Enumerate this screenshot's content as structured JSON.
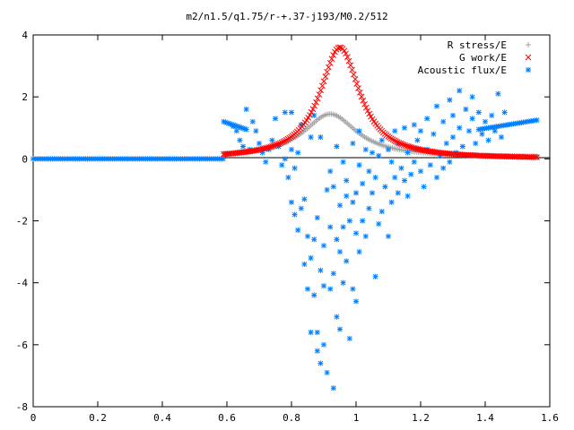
{
  "chart_data": {
    "type": "scatter",
    "title": "m2/n1.5/q1.75/r-+.37-j193/M0.2/512",
    "xlabel": "",
    "ylabel": "",
    "xlim": [
      0,
      1.6
    ],
    "ylim": [
      -8,
      4
    ],
    "x_ticks": [
      "0",
      "0.2",
      "0.4",
      "0.6",
      "0.8",
      "1",
      "1.2",
      "1.4",
      "1.6"
    ],
    "y_ticks": [
      "-8",
      "-6",
      "-4",
      "-2",
      "0",
      "2",
      "4"
    ],
    "grid": false,
    "legend_position": "top-right",
    "series": [
      {
        "name": "R stress/E",
        "marker": "+",
        "color": "#a0a0a0",
        "curve": {
          "x_range": [
            0.59,
            1.56
          ],
          "peak_x": 0.92,
          "peak_y": 1.45,
          "width": 0.1,
          "tail_y": 0.05
        }
      },
      {
        "name": "G work/E",
        "marker": "x",
        "color": "#ff0000",
        "curve": {
          "x_range": [
            0.59,
            1.56
          ],
          "peak_x": 0.95,
          "peak_y": 3.6,
          "width": 0.075,
          "tail_y": 0.0
        }
      },
      {
        "name": "Acoustic flux/E",
        "marker": "*",
        "color": "#0080ff",
        "line_zero": {
          "x_range": [
            0.0,
            0.59
          ],
          "y": 0
        },
        "edge_left": {
          "x_range": [
            0.59,
            0.66
          ],
          "y_start": 1.2,
          "y_end": 0.95
        },
        "edge_right": {
          "x_range": [
            1.38,
            1.56
          ],
          "y_start": 0.95,
          "y_end": 1.25
        },
        "points": [
          [
            0.62,
            1.05
          ],
          [
            0.63,
            0.9
          ],
          [
            0.64,
            0.6
          ],
          [
            0.65,
            0.4
          ],
          [
            0.66,
            1.6
          ],
          [
            0.67,
            0.3
          ],
          [
            0.68,
            1.2
          ],
          [
            0.69,
            0.9
          ],
          [
            0.7,
            0.5
          ],
          [
            0.71,
            0.2
          ],
          [
            0.72,
            -0.1
          ],
          [
            0.73,
            0.3
          ],
          [
            0.74,
            0.6
          ],
          [
            0.75,
            1.3
          ],
          [
            0.76,
            0.4
          ],
          [
            0.77,
            -0.2
          ],
          [
            0.78,
            0.0
          ],
          [
            0.78,
            1.5
          ],
          [
            0.79,
            -0.6
          ],
          [
            0.8,
            1.5
          ],
          [
            0.8,
            0.3
          ],
          [
            0.8,
            -1.4
          ],
          [
            0.81,
            -1.8
          ],
          [
            0.81,
            -0.3
          ],
          [
            0.82,
            -2.3
          ],
          [
            0.82,
            0.2
          ],
          [
            0.83,
            -1.6
          ],
          [
            0.83,
            1.1
          ],
          [
            0.84,
            -3.4
          ],
          [
            0.84,
            -1.3
          ],
          [
            0.85,
            -2.5
          ],
          [
            0.85,
            -4.2
          ],
          [
            0.86,
            -3.2
          ],
          [
            0.86,
            -5.6
          ],
          [
            0.86,
            0.7
          ],
          [
            0.87,
            -2.6
          ],
          [
            0.87,
            -4.4
          ],
          [
            0.87,
            1.4
          ],
          [
            0.88,
            -6.2
          ],
          [
            0.88,
            -1.9
          ],
          [
            0.88,
            -5.6
          ],
          [
            0.89,
            -6.6
          ],
          [
            0.89,
            -3.6
          ],
          [
            0.89,
            0.7
          ],
          [
            0.9,
            -6.0
          ],
          [
            0.9,
            -2.8
          ],
          [
            0.9,
            -4.1
          ],
          [
            0.91,
            -6.9
          ],
          [
            0.91,
            -1.0
          ],
          [
            0.92,
            -4.2
          ],
          [
            0.92,
            -2.2
          ],
          [
            0.92,
            -0.4
          ],
          [
            0.93,
            -7.4
          ],
          [
            0.93,
            -3.7
          ],
          [
            0.93,
            -0.9
          ],
          [
            0.94,
            -5.1
          ],
          [
            0.94,
            -2.6
          ],
          [
            0.94,
            0.4
          ],
          [
            0.95,
            -5.5
          ],
          [
            0.95,
            -3.0
          ],
          [
            0.95,
            -1.5
          ],
          [
            0.96,
            -4.0
          ],
          [
            0.96,
            -2.2
          ],
          [
            0.96,
            -0.1
          ],
          [
            0.97,
            -3.3
          ],
          [
            0.97,
            -1.2
          ],
          [
            0.97,
            -0.7
          ],
          [
            0.98,
            -5.8
          ],
          [
            0.98,
            -2.0
          ],
          [
            0.99,
            -4.2
          ],
          [
            0.99,
            -1.4
          ],
          [
            0.99,
            0.5
          ],
          [
            1.0,
            -4.6
          ],
          [
            1.0,
            -2.4
          ],
          [
            1.0,
            -1.1
          ],
          [
            1.01,
            -3.0
          ],
          [
            1.01,
            -0.2
          ],
          [
            1.01,
            0.9
          ],
          [
            1.02,
            -2.0
          ],
          [
            1.02,
            -0.8
          ],
          [
            1.03,
            -2.5
          ],
          [
            1.03,
            0.3
          ],
          [
            1.04,
            -1.6
          ],
          [
            1.04,
            -0.4
          ],
          [
            1.05,
            -1.1
          ],
          [
            1.05,
            0.2
          ],
          [
            1.06,
            -3.8
          ],
          [
            1.06,
            -0.6
          ],
          [
            1.07,
            -2.1
          ],
          [
            1.07,
            0.1
          ],
          [
            1.08,
            -1.7
          ],
          [
            1.08,
            0.6
          ],
          [
            1.09,
            -0.9
          ],
          [
            1.1,
            -2.5
          ],
          [
            1.1,
            0.3
          ],
          [
            1.11,
            -1.4
          ],
          [
            1.11,
            -0.1
          ],
          [
            1.12,
            -0.6
          ],
          [
            1.12,
            0.9
          ],
          [
            1.13,
            -1.1
          ],
          [
            1.13,
            0.5
          ],
          [
            1.14,
            -0.3
          ],
          [
            1.15,
            -0.7
          ],
          [
            1.15,
            1.0
          ],
          [
            1.16,
            -1.2
          ],
          [
            1.16,
            0.2
          ],
          [
            1.17,
            -0.5
          ],
          [
            1.18,
            1.1
          ],
          [
            1.18,
            -0.1
          ],
          [
            1.19,
            0.6
          ],
          [
            1.2,
            -0.4
          ],
          [
            1.2,
            0.9
          ],
          [
            1.21,
            -0.9
          ],
          [
            1.22,
            1.3
          ],
          [
            1.22,
            0.3
          ],
          [
            1.23,
            -0.2
          ],
          [
            1.24,
            0.8
          ],
          [
            1.25,
            1.7
          ],
          [
            1.25,
            -0.6
          ],
          [
            1.26,
            0.1
          ],
          [
            1.27,
            1.2
          ],
          [
            1.27,
            -0.3
          ],
          [
            1.28,
            0.5
          ],
          [
            1.29,
            1.9
          ],
          [
            1.29,
            -0.1
          ],
          [
            1.3,
            0.7
          ],
          [
            1.3,
            1.4
          ],
          [
            1.31,
            0.2
          ],
          [
            1.32,
            1.0
          ],
          [
            1.32,
            2.2
          ],
          [
            1.33,
            0.4
          ],
          [
            1.34,
            1.6
          ],
          [
            1.34,
            0.1
          ],
          [
            1.35,
            0.9
          ],
          [
            1.36,
            1.3
          ],
          [
            1.36,
            2.0
          ],
          [
            1.37,
            0.5
          ],
          [
            1.38,
            1.5
          ],
          [
            1.39,
            0.8
          ],
          [
            1.4,
            1.2
          ],
          [
            1.41,
            0.6
          ],
          [
            1.42,
            1.4
          ],
          [
            1.43,
            0.9
          ],
          [
            1.44,
            2.1
          ],
          [
            1.45,
            0.7
          ],
          [
            1.46,
            1.5
          ],
          [
            1.47,
            1.1
          ]
        ]
      }
    ]
  }
}
